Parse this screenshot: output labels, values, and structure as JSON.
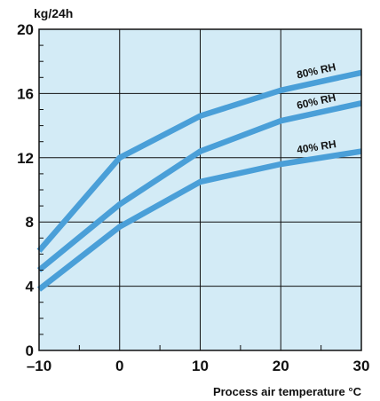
{
  "chart_data": {
    "type": "line",
    "ylabel": "kg/24h",
    "xlabel": "Process air temperature  °C",
    "xlim": [
      -10,
      30
    ],
    "ylim": [
      0,
      20
    ],
    "x_ticks": [
      -10,
      0,
      10,
      20,
      30
    ],
    "x_tick_labels": [
      "–10",
      "0",
      "10",
      "20",
      "30"
    ],
    "y_ticks": [
      0,
      4,
      8,
      12,
      16,
      20
    ],
    "y_tick_labels": [
      "0",
      "4",
      "8",
      "12",
      "16",
      "20"
    ],
    "grid": true,
    "series": [
      {
        "name": "80% RH",
        "x": [
          -10,
          0,
          10,
          20,
          30
        ],
        "values": [
          6.2,
          12.0,
          14.6,
          16.2,
          17.3
        ]
      },
      {
        "name": "60% RH",
        "x": [
          -10,
          0,
          10,
          20,
          30
        ],
        "values": [
          5.0,
          9.1,
          12.4,
          14.3,
          15.4
        ]
      },
      {
        "name": "40% RH",
        "x": [
          -10,
          0,
          10,
          20,
          30
        ],
        "values": [
          3.8,
          7.7,
          10.5,
          11.6,
          12.4
        ]
      }
    ],
    "colors": {
      "plot_background": "#d3ebf6",
      "line": "#4a9fd8",
      "grid": "#111111",
      "axis": "#111111"
    }
  }
}
